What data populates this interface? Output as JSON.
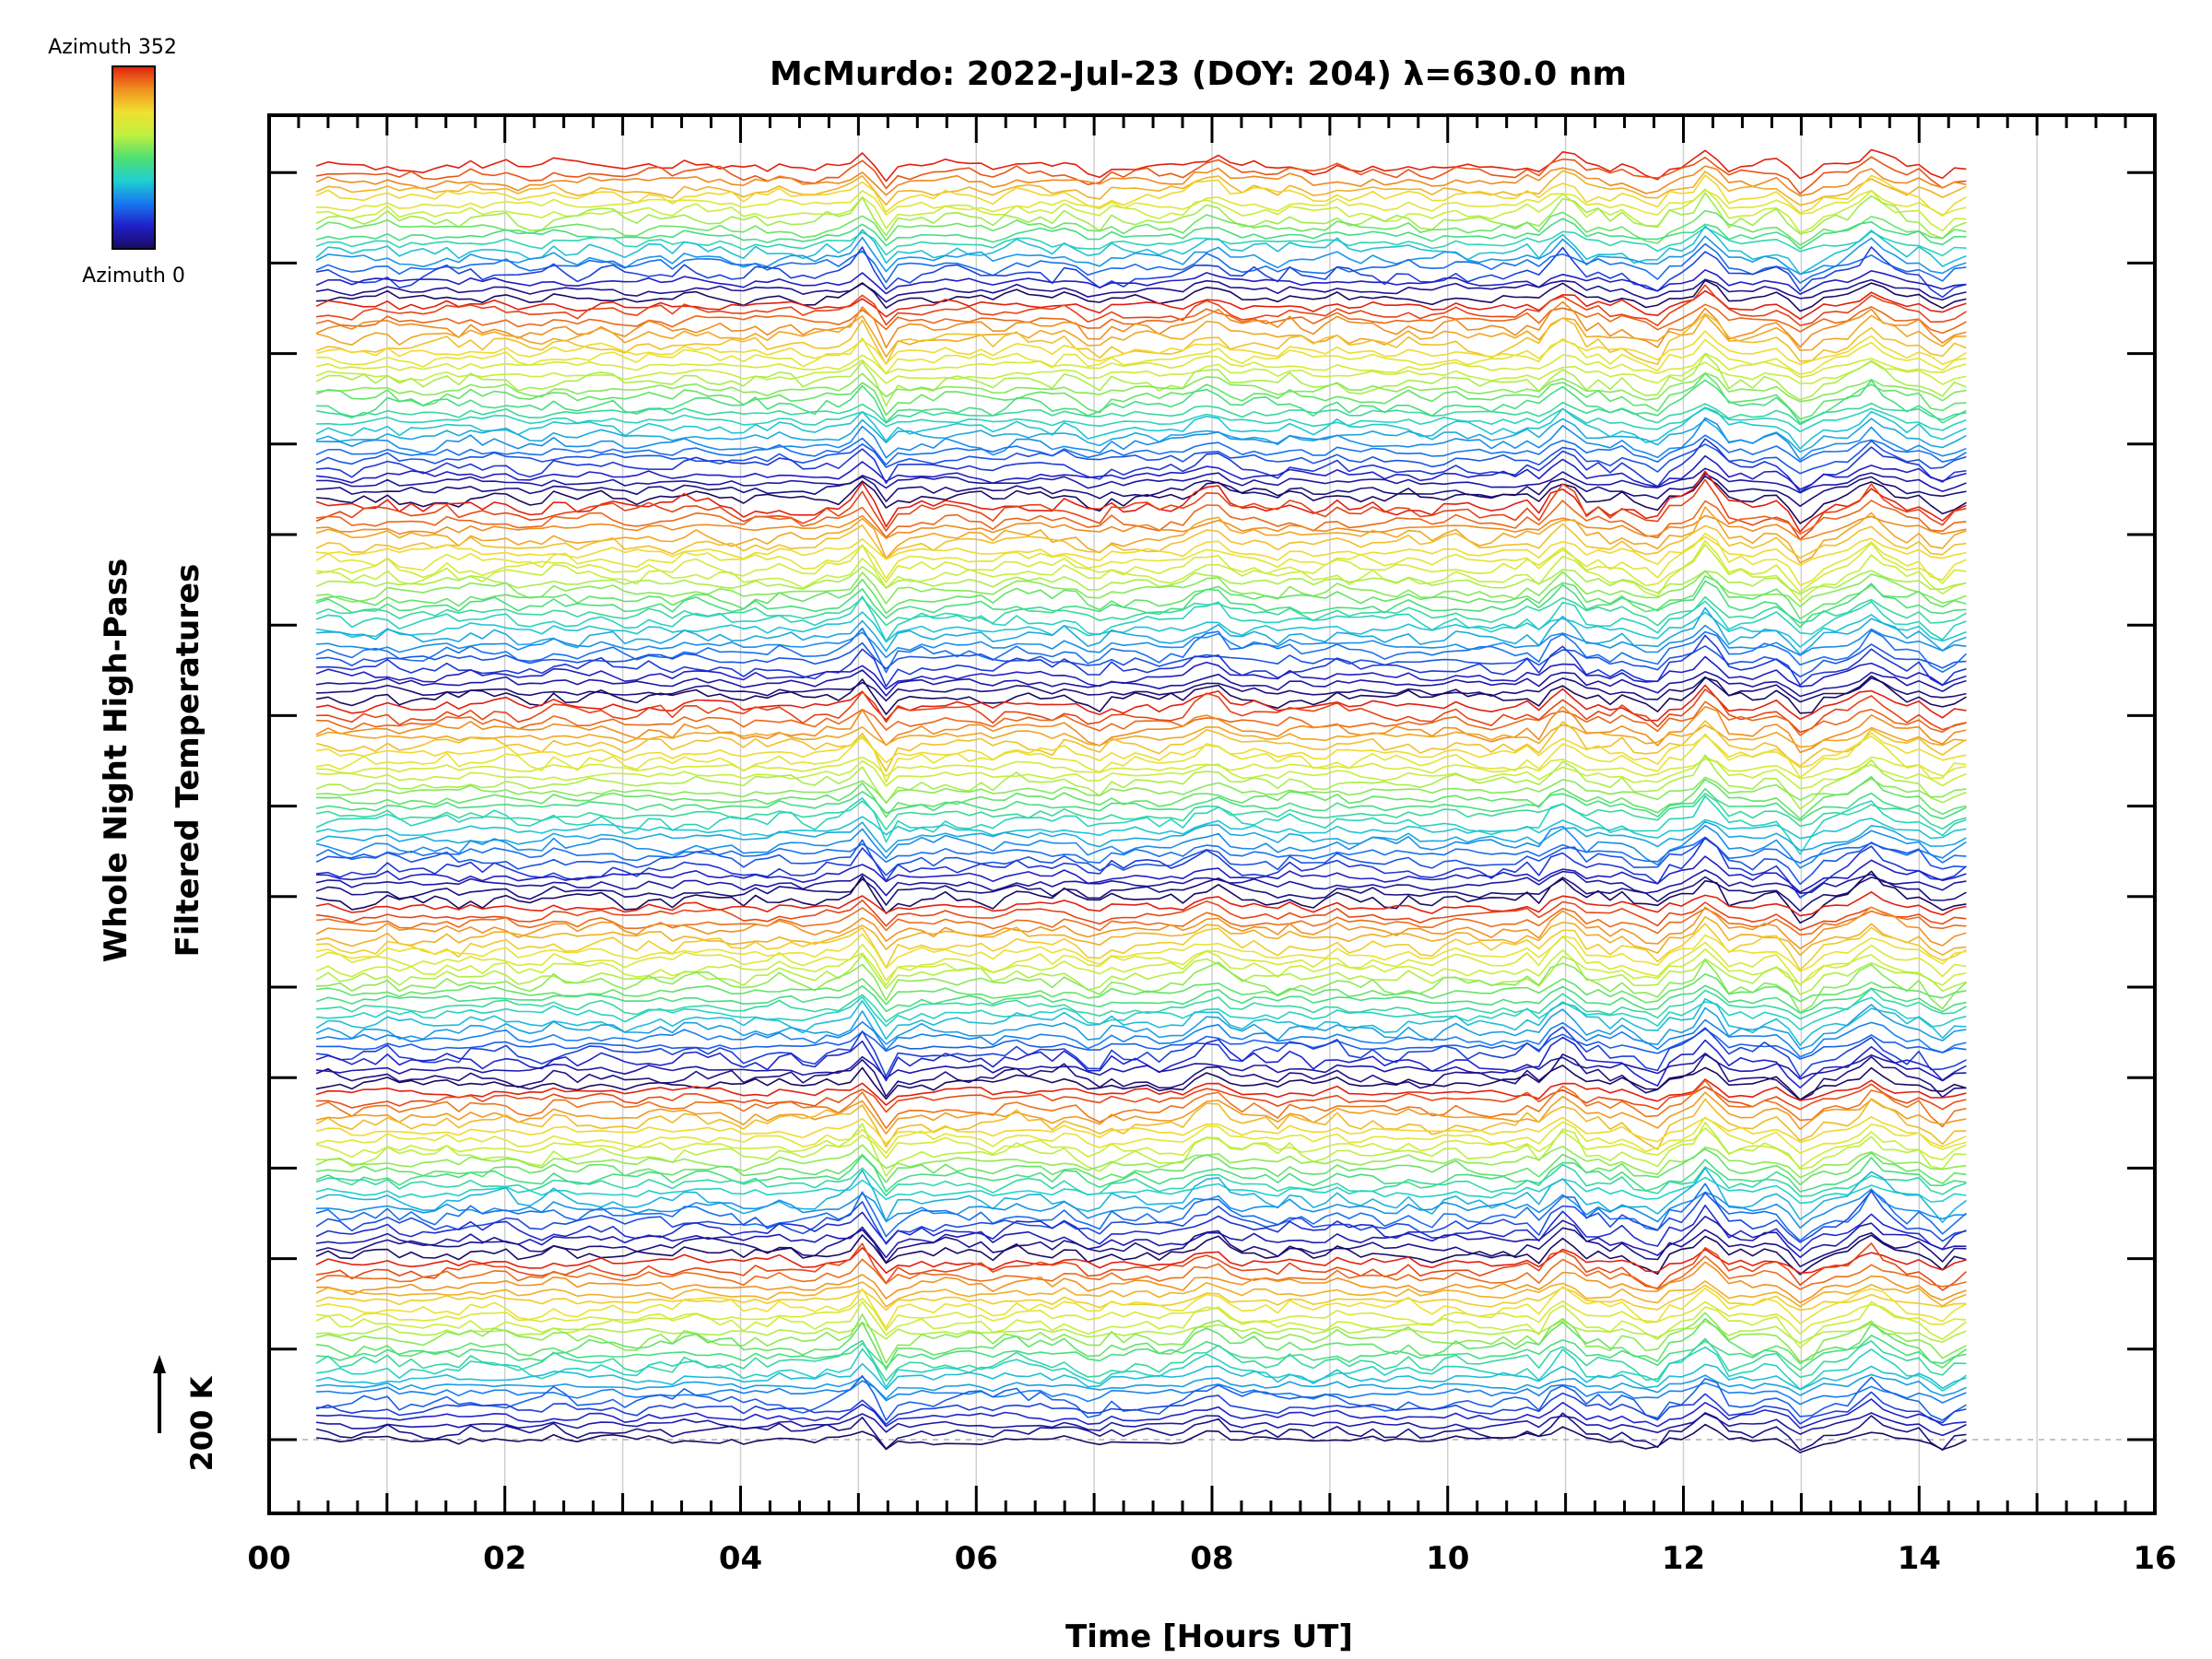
{
  "chart_data": {
    "type": "line",
    "title": "McMurdo: 2022-Jul-23 (DOY: 204) λ=630.0 nm",
    "xlabel": "Time [Hours UT]",
    "ylabel_line1": "Whole Night High-Pass",
    "ylabel_line2": "Filtered Temperatures",
    "scale_marker": "200 K",
    "xlim": [
      0,
      16
    ],
    "x_ticks": [
      "00",
      "02",
      "04",
      "06",
      "08",
      "10",
      "12",
      "14",
      "16"
    ],
    "x_tick_values": [
      0,
      2,
      4,
      6,
      8,
      10,
      12,
      14,
      16
    ],
    "data_time_range": [
      0.4,
      14.4
    ],
    "grid": "vertical",
    "colorbar": {
      "top_label": "Azimuth 352",
      "bottom_label": "Azimuth 0",
      "colormap": [
        "#1a0a60",
        "#2020c8",
        "#1878f0",
        "#20d0d0",
        "#50e070",
        "#c0f040",
        "#f0e030",
        "#f09020",
        "#e02010"
      ]
    },
    "series_count": 166,
    "series_offset_K": 200,
    "series_note": "High-pass filtered temperature traces stacked with constant offset; color encodes azimuth from 0 to 352 degrees"
  }
}
